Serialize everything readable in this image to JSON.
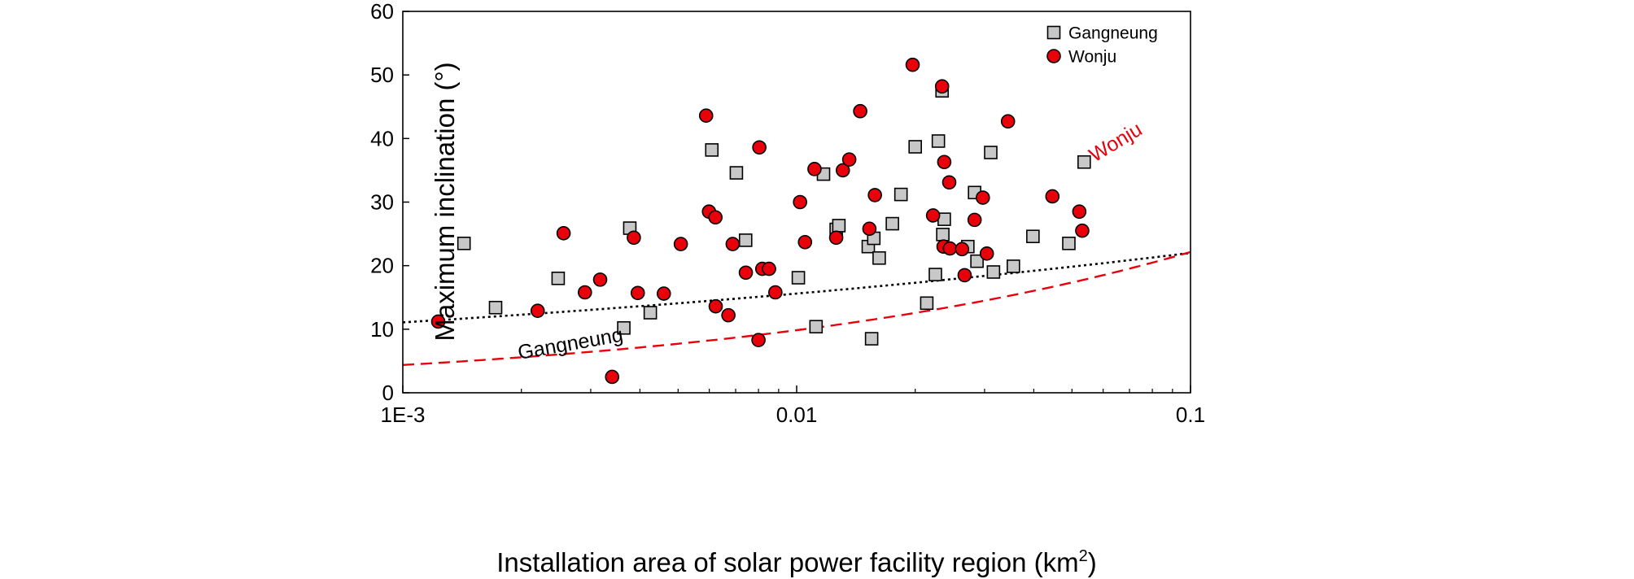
{
  "chart_data": {
    "type": "scatter",
    "title": "",
    "xlabel": "Installation area of solar power facility region (km",
    "xlabel_sup": "2",
    "xlabel_close": ")",
    "ylabel": "Maximum inclination (°)",
    "xscale": "log",
    "xlim": [
      0.001,
      0.1
    ],
    "ylim": [
      0,
      60
    ],
    "x_ticks": [
      {
        "value": 0.001,
        "label": "1E-3"
      },
      {
        "value": 0.01,
        "label": "0.01"
      },
      {
        "value": 0.1,
        "label": "0.1"
      }
    ],
    "y_ticks": [
      0,
      10,
      20,
      30,
      40,
      50,
      60
    ],
    "legend_position": "top-right",
    "series": [
      {
        "name": "Gangneung",
        "marker": "square",
        "color": "#c8c8c8",
        "points": [
          [
            0.00143,
            23.5
          ],
          [
            0.00172,
            13.4
          ],
          [
            0.00248,
            18.0
          ],
          [
            0.00364,
            10.2
          ],
          [
            0.00377,
            25.9
          ],
          [
            0.00425,
            12.6
          ],
          [
            0.00609,
            38.2
          ],
          [
            0.00703,
            34.6
          ],
          [
            0.00742,
            24.0
          ],
          [
            0.0101,
            18.1
          ],
          [
            0.0112,
            10.4
          ],
          [
            0.0117,
            34.4
          ],
          [
            0.0126,
            25.7
          ],
          [
            0.0128,
            26.3
          ],
          [
            0.0152,
            23.0
          ],
          [
            0.0155,
            8.5
          ],
          [
            0.0157,
            24.3
          ],
          [
            0.0162,
            21.2
          ],
          [
            0.0175,
            26.6
          ],
          [
            0.0184,
            31.2
          ],
          [
            0.02,
            38.7
          ],
          [
            0.0214,
            14.1
          ],
          [
            0.0225,
            18.6
          ],
          [
            0.0229,
            39.6
          ],
          [
            0.0234,
            47.5
          ],
          [
            0.0235,
            24.9
          ],
          [
            0.0237,
            27.3
          ],
          [
            0.0272,
            23.0
          ],
          [
            0.0283,
            31.5
          ],
          [
            0.0287,
            20.7
          ],
          [
            0.0311,
            37.8
          ],
          [
            0.0316,
            19.0
          ],
          [
            0.0355,
            19.9
          ],
          [
            0.0398,
            24.6
          ],
          [
            0.0491,
            23.5
          ],
          [
            0.0537,
            36.3
          ]
        ]
      },
      {
        "name": "Wonju",
        "marker": "circle",
        "color": "#e8000b",
        "points": [
          [
            0.00123,
            11.2
          ],
          [
            0.0022,
            12.9
          ],
          [
            0.00256,
            25.1
          ],
          [
            0.0029,
            15.8
          ],
          [
            0.00317,
            17.8
          ],
          [
            0.0034,
            2.5
          ],
          [
            0.00386,
            24.4
          ],
          [
            0.00395,
            15.7
          ],
          [
            0.0046,
            15.6
          ],
          [
            0.00508,
            23.4
          ],
          [
            0.00589,
            43.6
          ],
          [
            0.00599,
            28.5
          ],
          [
            0.00622,
            27.6
          ],
          [
            0.00623,
            13.6
          ],
          [
            0.00671,
            12.2
          ],
          [
            0.00688,
            23.4
          ],
          [
            0.00743,
            18.9
          ],
          [
            0.008,
            8.3
          ],
          [
            0.00804,
            38.6
          ],
          [
            0.00818,
            19.5
          ],
          [
            0.00851,
            19.5
          ],
          [
            0.00883,
            15.8
          ],
          [
            0.0102,
            30.0
          ],
          [
            0.0105,
            23.7
          ],
          [
            0.0111,
            35.2
          ],
          [
            0.0126,
            24.4
          ],
          [
            0.0131,
            35.0
          ],
          [
            0.0136,
            36.7
          ],
          [
            0.0145,
            44.3
          ],
          [
            0.0153,
            25.8
          ],
          [
            0.0158,
            31.1
          ],
          [
            0.0197,
            51.6
          ],
          [
            0.0222,
            27.9
          ],
          [
            0.0234,
            48.2
          ],
          [
            0.0236,
            23.0
          ],
          [
            0.0237,
            36.3
          ],
          [
            0.0244,
            33.1
          ],
          [
            0.0245,
            22.7
          ],
          [
            0.0263,
            22.6
          ],
          [
            0.0267,
            18.5
          ],
          [
            0.0283,
            27.2
          ],
          [
            0.0297,
            30.7
          ],
          [
            0.0304,
            21.9
          ],
          [
            0.0344,
            42.7
          ],
          [
            0.0446,
            30.9
          ],
          [
            0.0522,
            28.5
          ],
          [
            0.0531,
            25.5
          ]
        ]
      }
    ],
    "fit_lines": [
      {
        "name": "Gangneung",
        "label": "Gangneung",
        "style": "dotted",
        "color": "#000000",
        "model": "exponential",
        "a": 31.0,
        "b": 0.149
      },
      {
        "name": "Wonju",
        "label": "Wonju",
        "style": "dashed",
        "color": "#e8000b",
        "model": "exponential",
        "a": 49.8,
        "b": 0.352
      }
    ]
  }
}
